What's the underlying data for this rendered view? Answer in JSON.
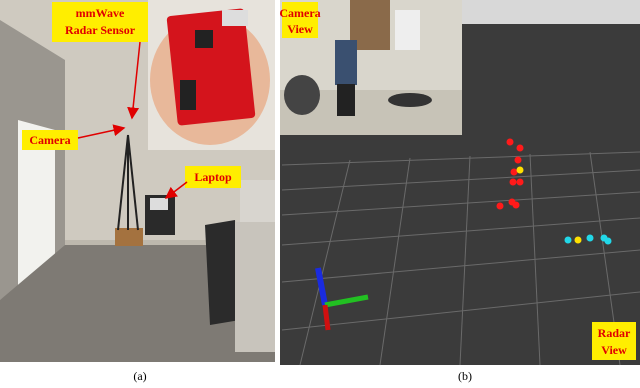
{
  "panel_a": {
    "labels": {
      "radar": [
        "mmWave",
        "Radar Sensor"
      ],
      "camera": [
        "Camera"
      ],
      "laptop": [
        "Laptop"
      ]
    },
    "caption": "(a)"
  },
  "panel_b": {
    "labels": {
      "camera_view": [
        "Camera",
        "View"
      ],
      "radar_view": [
        "Radar",
        "View"
      ]
    },
    "caption": "(b)"
  }
}
